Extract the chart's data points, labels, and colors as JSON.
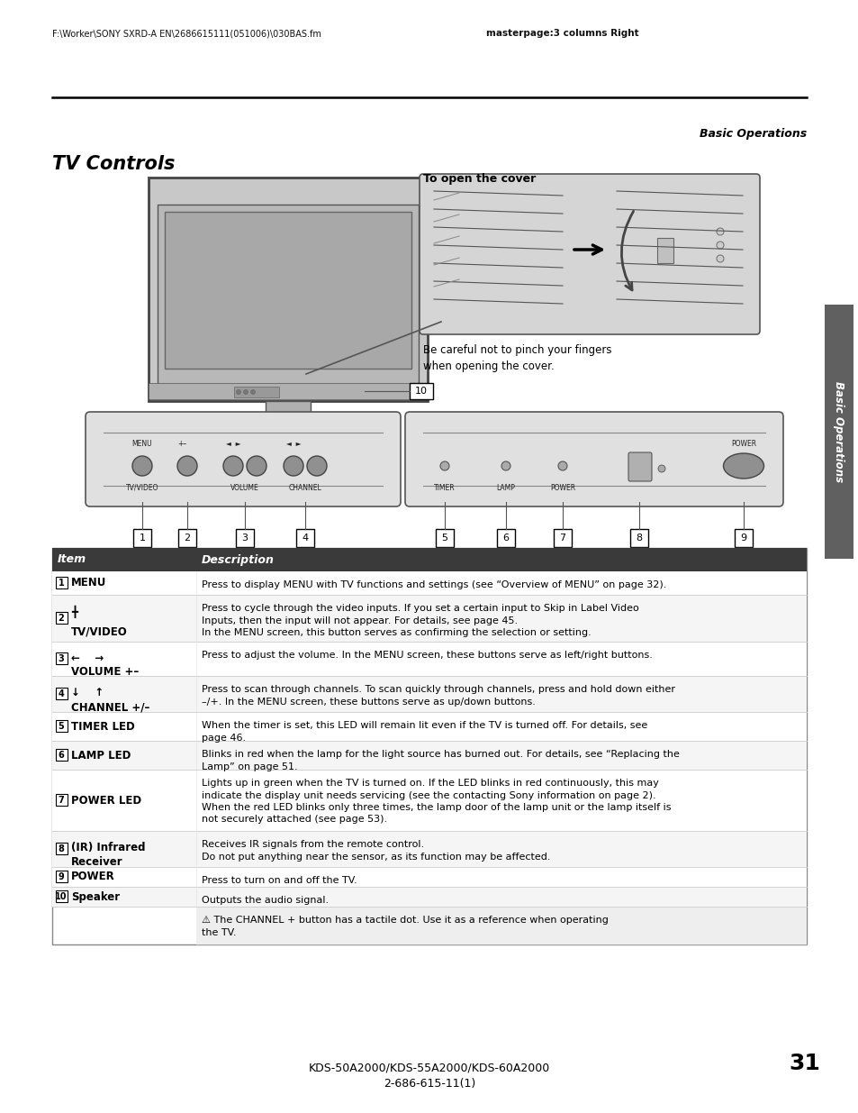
{
  "page_bg": "#ffffff",
  "header_left": "F:\\Worker\\SONY SXRD-A EN\\2686615111(051006)\\030BAS.fm",
  "header_right": "masterpage:3 columns Right",
  "section_title": "Basic Operations",
  "title": "TV Controls",
  "cover_note_title": "To open the cover",
  "cover_note_body": "Be careful not to pinch your fingers\nwhen opening the cover.",
  "side_tab": "Basic Operations",
  "table_header": [
    "Item",
    "Description"
  ],
  "table_rows": [
    [
      "1",
      "MENU",
      "Press to display MENU with TV functions and settings (see “Overview of MENU” on page 32)."
    ],
    [
      "2",
      "╋\nTV/VIDEO",
      "Press to cycle through the video inputs. If you set a certain input to Skip in Label Video\nInputs, then the input will not appear. For details, see page 45.\nIn the MENU screen, this button serves as confirming the selection or setting."
    ],
    [
      "3",
      "←    →\nVOLUME +–",
      "Press to adjust the volume. In the MENU screen, these buttons serve as left/right buttons."
    ],
    [
      "4",
      "↓    ↑\nCHANNEL +/–",
      "Press to scan through channels. To scan quickly through channels, press and hold down either\n–/+. In the MENU screen, these buttons serve as up/down buttons."
    ],
    [
      "5",
      "TIMER LED",
      "When the timer is set, this LED will remain lit even if the TV is turned off. For details, see\npage 46."
    ],
    [
      "6",
      "LAMP LED",
      "Blinks in red when the lamp for the light source has burned out. For details, see “Replacing the\nLamp” on page 51."
    ],
    [
      "7",
      "POWER LED",
      "Lights up in green when the TV is turned on. If the LED blinks in red continuously, this may\nindicate the display unit needs servicing (see the contacting Sony information on page 2).\nWhen the red LED blinks only three times, the lamp door of the lamp unit or the lamp itself is\nnot securely attached (see page 53)."
    ],
    [
      "8",
      "(IR) Infrared\nReceiver",
      "Receives IR signals from the remote control.\nDo not put anything near the sensor, as its function may be affected."
    ],
    [
      "9",
      "POWER",
      "Press to turn on and off the TV."
    ],
    [
      "10",
      "Speaker",
      "Outputs the audio signal."
    ]
  ],
  "note_text": "The CHANNEL + button has a tactile dot. Use it as a reference when operating\nthe TV.",
  "footer_model": "KDS-50A2000/KDS-55A2000/KDS-60A2000",
  "footer_code": "2-686-615-11(1)",
  "page_number": "31",
  "table_header_bg": "#3a3a3a",
  "table_header_fg": "#ffffff",
  "table_row_bg1": "#ffffff",
  "table_row_bg2": "#f5f5f5",
  "note_bg": "#eeeeee",
  "side_tab_bg": "#606060",
  "side_tab_fg": "#ffffff"
}
